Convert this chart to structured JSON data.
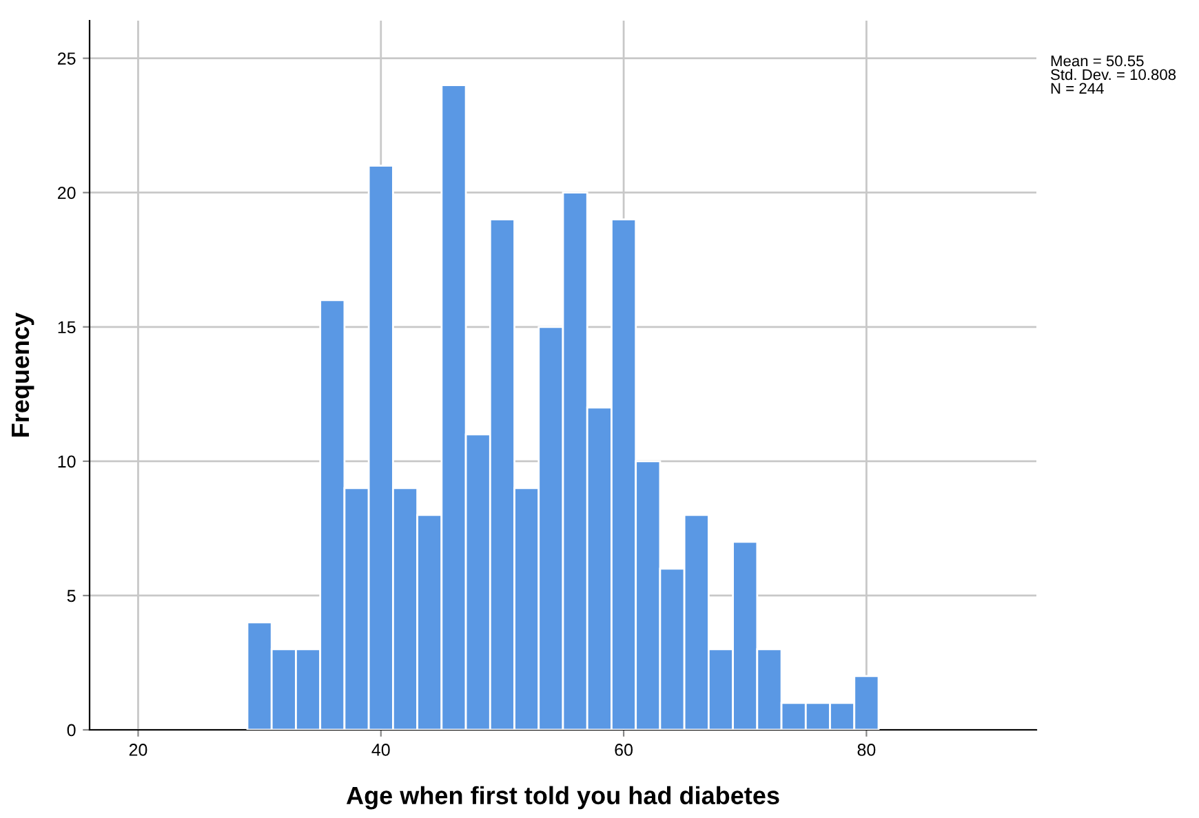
{
  "chart_data": {
    "type": "histogram",
    "xlabel": "Age when first told you had diabetes",
    "ylabel": "Frequency",
    "bins": [
      29,
      31,
      33,
      35,
      37,
      39,
      41,
      43,
      45,
      47,
      49,
      51,
      53,
      55,
      57,
      59,
      61,
      63,
      65,
      67,
      69,
      71,
      73,
      75,
      77,
      79,
      81
    ],
    "values": [
      4,
      3,
      3,
      16,
      9,
      21,
      9,
      8,
      24,
      11,
      19,
      9,
      15,
      20,
      12,
      19,
      10,
      6,
      8,
      3,
      7,
      3,
      1,
      1,
      1,
      2
    ],
    "color": "#5a98e4",
    "xlim": [
      16,
      94
    ],
    "xticks": [
      20,
      40,
      60,
      80
    ],
    "ylim": [
      0,
      26.4
    ],
    "yticks": [
      0,
      5,
      10,
      15,
      20,
      25
    ],
    "grid": true,
    "annotations": [
      "Mean = 50.55\nStd. Dev. = 10.808\nN = 244"
    ]
  }
}
